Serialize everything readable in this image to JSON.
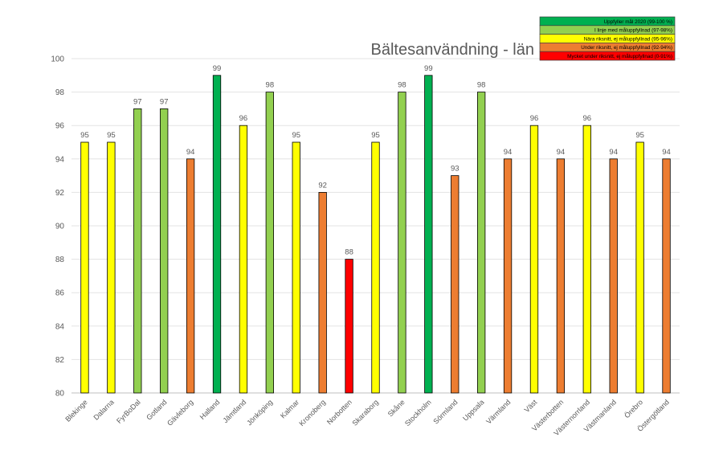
{
  "chart_data": {
    "type": "bar",
    "title": "Bältesanvändning - län",
    "xlabel": "",
    "ylabel": "",
    "ylim": [
      80,
      100
    ],
    "yticks": [
      80,
      82,
      84,
      86,
      88,
      90,
      92,
      94,
      96,
      98,
      100
    ],
    "grid": true,
    "categories": [
      "Blekinge",
      "Dalarna",
      "FyrBoDal",
      "Gotland",
      "Gävleborg",
      "Halland",
      "Jämtland",
      "Jönköping",
      "Kalmar",
      "Kronoberg",
      "Norbotten",
      "Skaraborg",
      "Skåne",
      "Stockholm",
      "Sörmland",
      "Uppsala",
      "Värmland",
      "Väst",
      "Västerbotten",
      "Västernorrland",
      "Västmanland",
      "Örebro",
      "Östergötland"
    ],
    "values": [
      95,
      95,
      97,
      97,
      94,
      99,
      96,
      98,
      95,
      92,
      88,
      95,
      98,
      99,
      93,
      98,
      94,
      96,
      94,
      96,
      94,
      95,
      94
    ],
    "legend_position": "top-right",
    "legend": [
      {
        "label": "Uppfyller mål 2020 (99-100 %)",
        "color": "#00b050",
        "text_color": "#000000",
        "min": 99
      },
      {
        "label": "I linje med måluppfyllnad (97-98%)",
        "color": "#92d050",
        "text_color": "#000000",
        "min": 97
      },
      {
        "label": "Nära riksnitt, ej måluppfyllnad (95-96%)",
        "color": "#ffff00",
        "text_color": "#000000",
        "min": 95
      },
      {
        "label": "Under riksnitt, ej måluppfyllnad (92-94%)",
        "color": "#ed7d31",
        "text_color": "#000000",
        "min": 92
      },
      {
        "label": "Mycket under riksnitt, ej måluppfyllnad (0-91%)",
        "color": "#ff0000",
        "text_color": "#000000",
        "min": 0
      }
    ]
  }
}
